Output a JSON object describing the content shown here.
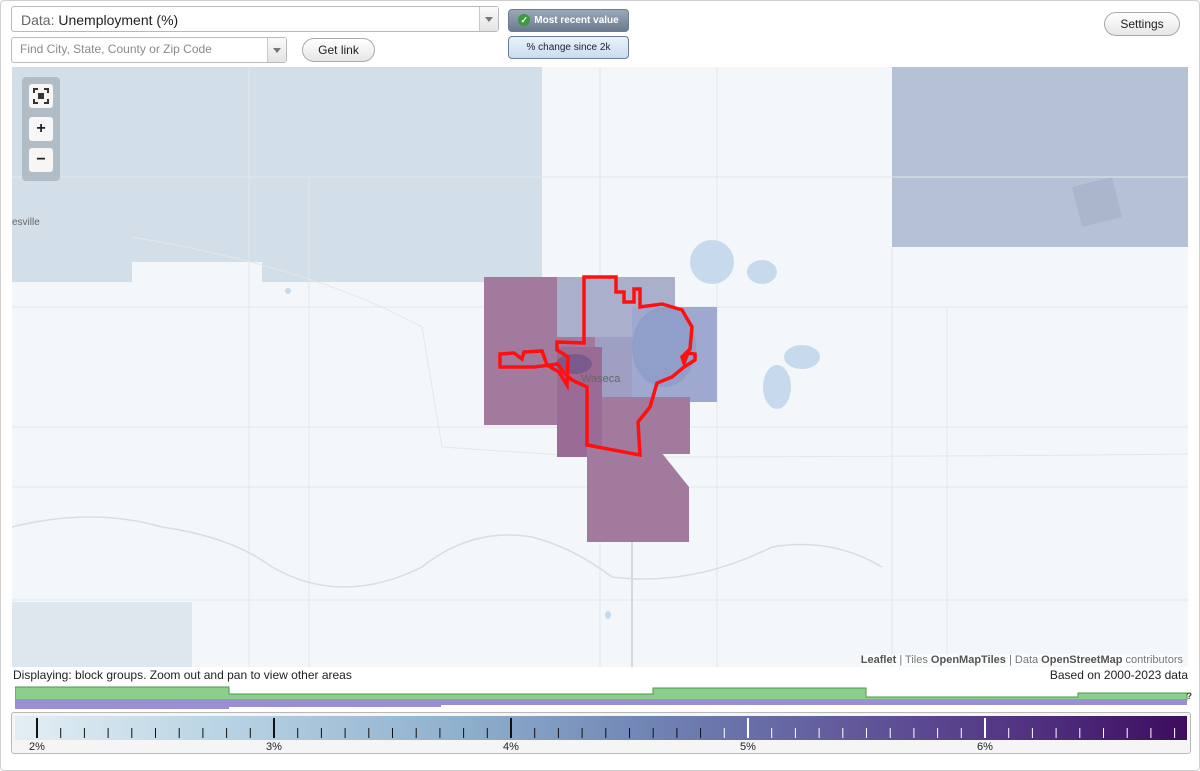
{
  "header": {
    "data_select": {
      "prefix": "Data:",
      "value": "Unemployment (%)"
    },
    "find": {
      "placeholder": "Find City, State, County or Zip Code"
    },
    "get_link_label": "Get link",
    "mode_recent_label": "Most recent value",
    "mode_change_label": "% change since 2k",
    "settings_label": "Settings"
  },
  "map": {
    "place_label_main": "Waseca",
    "place_label_partial": "esville",
    "zoom_controls": {
      "fullscreen_icon": "fullscreen-icon",
      "zoom_in": "+",
      "zoom_out": "−"
    },
    "highlight_color": "#ff0000",
    "attribution": {
      "leaflet": "Leaflet",
      "sep1": " | Tiles ",
      "tiles": "OpenMapTiles",
      "sep2": " | Data ",
      "data": "OpenStreetMap",
      "contributors": " contributors"
    }
  },
  "legend": {
    "status_left": "Displaying: block groups. Zoom out and pan to view other areas",
    "status_right": "Based on 2000-2023 data",
    "help_mark": "?",
    "ticks": [
      "2%",
      "3%",
      "4%",
      "5%",
      "6%"
    ],
    "scale_min_color": "#e3eef4",
    "scale_max_color": "#3d0c5e",
    "histogram_colors": {
      "top": "#8ccf8c",
      "bottom": "#9a8fd0"
    }
  }
}
